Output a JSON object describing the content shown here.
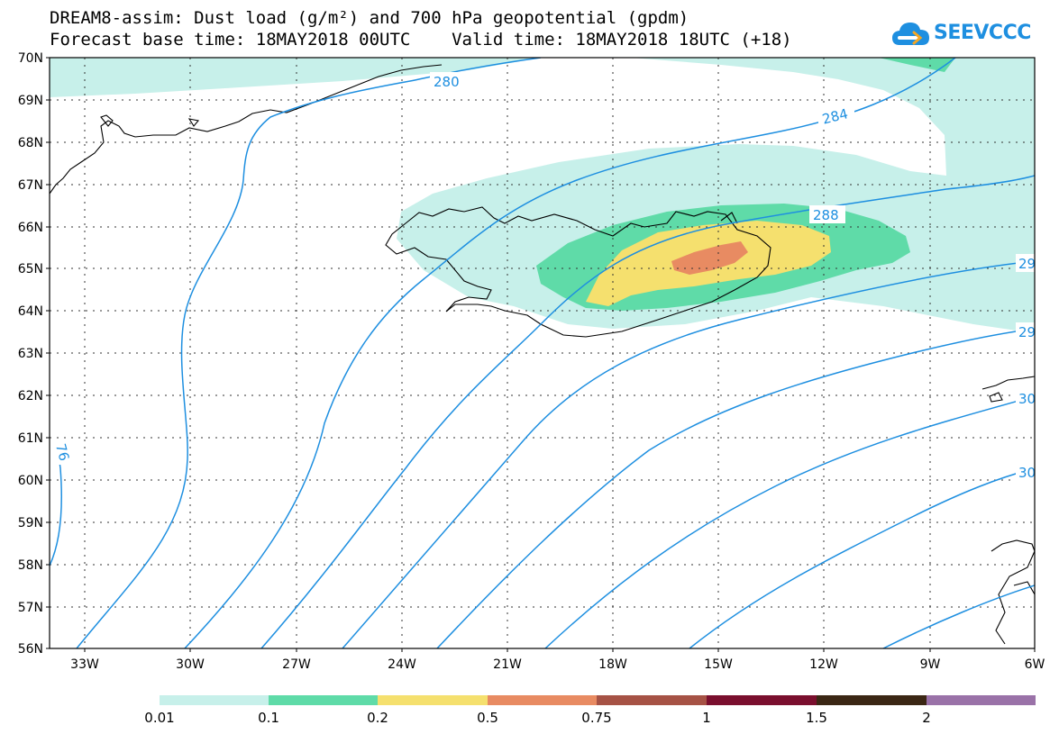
{
  "title": {
    "line1": "DREAM8-assim: Dust load (g/m²) and 700 hPa geopotential (gpdm)",
    "line2": "Forecast base time: 18MAY2018 00UTC    Valid time: 18MAY2018 18UTC (+18)"
  },
  "logo": {
    "text": "SEEVCCC",
    "icon": "cloud-icon",
    "color": "#1e8fe0"
  },
  "map": {
    "lat_labels": [
      "70N",
      "69N",
      "68N",
      "67N",
      "66N",
      "65N",
      "64N",
      "63N",
      "62N",
      "61N",
      "60N",
      "59N",
      "58N",
      "57N",
      "56N"
    ],
    "lon_labels": [
      "33W",
      "30W",
      "27W",
      "24W",
      "21W",
      "18W",
      "15W",
      "12W",
      "9W",
      "6W"
    ],
    "contour_labels": [
      "280",
      "284",
      "288",
      "29",
      "29",
      "30",
      "30",
      "76"
    ],
    "contour_color": "#1e8fe0",
    "dust_colors": {
      "level_0_01": "#c7f0ea",
      "level_0_1": "#5fdba8",
      "level_0_2": "#f5e06e",
      "level_0_5": "#e88b62"
    }
  },
  "colorbar": {
    "labels": [
      "0.01",
      "0.1",
      "0.2",
      "0.5",
      "0.75",
      "1",
      "1.5",
      "2"
    ],
    "colors": [
      "#c7f0ea",
      "#5fdba8",
      "#f5e06e",
      "#e88b62",
      "#a65245",
      "#7a0f2e",
      "#3b2714",
      "#9a72a8"
    ]
  }
}
